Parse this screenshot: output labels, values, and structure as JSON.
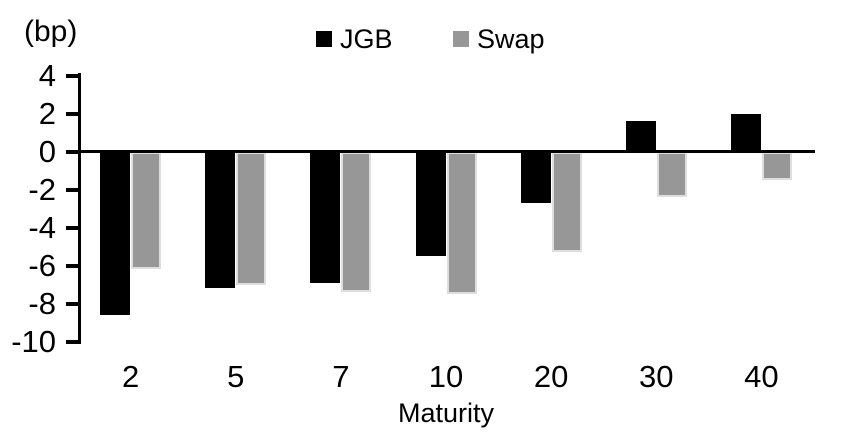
{
  "chart_data": {
    "type": "bar",
    "title": "",
    "unit_label": "(bp)",
    "xlabel": "Maturity",
    "ylabel": "(bp)",
    "categories": [
      "2",
      "5",
      "7",
      "10",
      "20",
      "30",
      "40"
    ],
    "series": [
      {
        "name": "JGB",
        "color": "#000000",
        "values": [
          -8.6,
          -7.2,
          -6.9,
          -5.5,
          -2.7,
          1.6,
          2.0
        ]
      },
      {
        "name": "Swap",
        "color": "#979797",
        "values": [
          -6.2,
          -7.0,
          -7.4,
          -7.5,
          -5.3,
          -2.4,
          -1.5
        ]
      }
    ],
    "y_ticks": [
      4,
      2,
      0,
      -2,
      -4,
      -6,
      -8,
      -10
    ],
    "ylim": [
      -10,
      4
    ],
    "legend_position": "top-center",
    "grid": false,
    "axis_color": "#000000",
    "background": "#ffffff"
  }
}
